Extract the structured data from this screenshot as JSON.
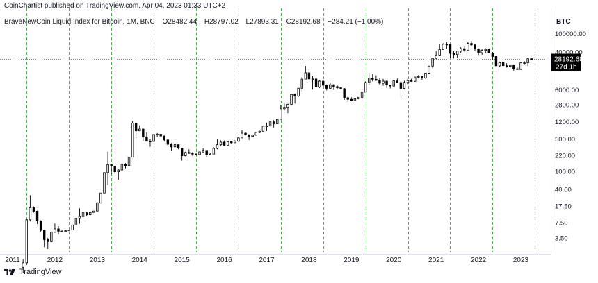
{
  "header": {
    "published_line": "CoinChartist published on TradingView.com, Apr 04, 2023 01:33 UTC+2",
    "symbol": "BraveNewCoin Liquid Index for Bitcoin, 1M, BNC",
    "open": "O28482.44",
    "high": "H28797.02",
    "low": "L27893.31",
    "close": "C28192.68",
    "change": "−284.21 (−1.00%)"
  },
  "footer": {
    "brand": "TradingView",
    "logo_icon": "tradingview-logo-icon"
  },
  "colors": {
    "up": "#ffffff",
    "down": "#000000",
    "wick": "#000000",
    "halving_lines": "#4caf50",
    "price_badge": "#000000"
  },
  "chart_data": {
    "type": "candlestick",
    "unit": "BTC",
    "scale": "log",
    "yticks": [
      "100000.00",
      "40000.00",
      "6000.00",
      "2800.00",
      "1200.00",
      "500.00",
      "220.00",
      "100.00",
      "40.00",
      "17.50",
      "7.50",
      "3.50"
    ],
    "xticks": [
      "2011",
      "2012",
      "2013",
      "2014",
      "2015",
      "2016",
      "2017",
      "2018",
      "2019",
      "2020",
      "2021",
      "2022",
      "2023"
    ],
    "ylim": [
      1.8,
      135000
    ],
    "last_price": "28192.68",
    "last_price_label": "27d 1h",
    "vertical_marker_dates": [
      "2011-05",
      "2012-05",
      "2013-05",
      "2014-05",
      "2015-05",
      "2016-05",
      "2017-05",
      "2018-05",
      "2019-05",
      "2020-05",
      "2021-05",
      "2022-05",
      "2023-05"
    ],
    "candles": [
      [
        "2011-04",
        0.8,
        1.2,
        0.6,
        1.0
      ],
      [
        "2011-05",
        1.0,
        9.0,
        0.9,
        8.7
      ],
      [
        "2011-06",
        8.7,
        30.0,
        8.0,
        16.0
      ],
      [
        "2011-07",
        16.0,
        17.0,
        12.5,
        13.4
      ],
      [
        "2011-08",
        13.4,
        13.8,
        7.0,
        8.2
      ],
      [
        "2011-09",
        8.2,
        8.5,
        4.8,
        5.1
      ],
      [
        "2011-10",
        5.1,
        5.2,
        2.2,
        3.2
      ],
      [
        "2011-11",
        3.2,
        3.5,
        2.0,
        2.9
      ],
      [
        "2011-12",
        2.9,
        4.5,
        2.8,
        4.7
      ],
      [
        "2012-01",
        4.7,
        7.2,
        4.5,
        5.5
      ],
      [
        "2012-02",
        5.5,
        6.3,
        4.2,
        4.9
      ],
      [
        "2012-03",
        4.9,
        5.3,
        4.7,
        4.9
      ],
      [
        "2012-04",
        4.9,
        5.2,
        4.8,
        5.0
      ],
      [
        "2012-05",
        5.0,
        5.2,
        4.9,
        5.2
      ],
      [
        "2012-06",
        5.2,
        6.7,
        5.2,
        6.7
      ],
      [
        "2012-07",
        6.7,
        9.5,
        6.5,
        9.3
      ],
      [
        "2012-08",
        9.3,
        15.4,
        7.1,
        10.2
      ],
      [
        "2012-09",
        10.2,
        12.8,
        10.0,
        12.4
      ],
      [
        "2012-10",
        12.4,
        12.9,
        10.5,
        11.2
      ],
      [
        "2012-11",
        11.2,
        12.5,
        10.3,
        12.6
      ],
      [
        "2012-12",
        12.6,
        13.7,
        12.5,
        13.5
      ],
      [
        "2013-01",
        13.5,
        21.0,
        13.2,
        20.4
      ],
      [
        "2013-02",
        20.4,
        33.0,
        19.8,
        33.4
      ],
      [
        "2013-03",
        33.4,
        94.0,
        33.0,
        93.0
      ],
      [
        "2013-04",
        93.0,
        266.0,
        50.0,
        139.0
      ],
      [
        "2013-05",
        139.0,
        140.0,
        85.0,
        129.0
      ],
      [
        "2013-06",
        129.0,
        130.0,
        88.0,
        97.0
      ],
      [
        "2013-07",
        97.0,
        110.0,
        65.0,
        106.0
      ],
      [
        "2013-08",
        106.0,
        140.0,
        100.0,
        141.0
      ],
      [
        "2013-09",
        141.0,
        150.0,
        115.0,
        132.0
      ],
      [
        "2013-10",
        132.0,
        215.0,
        105.0,
        203.0
      ],
      [
        "2013-11",
        203.0,
        1240.0,
        200.0,
        1120.0
      ],
      [
        "2013-12",
        1120.0,
        1150.0,
        520.0,
        757.0
      ],
      [
        "2014-01",
        757.0,
        1000.0,
        750.0,
        830.0
      ],
      [
        "2014-02",
        830.0,
        850.0,
        450.0,
        560.0
      ],
      [
        "2014-03",
        560.0,
        700.0,
        440.0,
        450.0
      ],
      [
        "2014-04",
        450.0,
        500.0,
        340.0,
        445.0
      ],
      [
        "2014-05",
        445.0,
        630.0,
        440.0,
        630.0
      ],
      [
        "2014-06",
        630.0,
        680.0,
        560.0,
        640.0
      ],
      [
        "2014-07",
        640.0,
        650.0,
        570.0,
        585.0
      ],
      [
        "2014-08",
        585.0,
        600.0,
        440.0,
        480.0
      ],
      [
        "2014-09",
        480.0,
        500.0,
        350.0,
        385.0
      ],
      [
        "2014-10",
        385.0,
        410.0,
        280.0,
        338.0
      ],
      [
        "2014-11",
        338.0,
        460.0,
        320.0,
        378.0
      ],
      [
        "2014-12",
        378.0,
        380.0,
        300.0,
        320.0
      ],
      [
        "2015-01",
        320.0,
        320.0,
        170.0,
        217.0
      ],
      [
        "2015-02",
        217.0,
        265.0,
        210.0,
        255.0
      ],
      [
        "2015-03",
        255.0,
        300.0,
        240.0,
        244.0
      ],
      [
        "2015-04",
        244.0,
        260.0,
        215.0,
        236.0
      ],
      [
        "2015-05",
        236.0,
        245.0,
        225.0,
        230.0
      ],
      [
        "2015-06",
        230.0,
        268.0,
        220.0,
        263.0
      ],
      [
        "2015-07",
        263.0,
        315.0,
        255.0,
        284.0
      ],
      [
        "2015-08",
        284.0,
        285.0,
        200.0,
        230.0
      ],
      [
        "2015-09",
        230.0,
        245.0,
        225.0,
        236.0
      ],
      [
        "2015-10",
        236.0,
        330.0,
        235.0,
        314.0
      ],
      [
        "2015-11",
        314.0,
        500.0,
        300.0,
        377.0
      ],
      [
        "2015-12",
        377.0,
        470.0,
        350.0,
        430.0
      ],
      [
        "2016-01",
        430.0,
        465.0,
        360.0,
        368.0
      ],
      [
        "2016-02",
        368.0,
        440.0,
        365.0,
        437.0
      ],
      [
        "2016-03",
        437.0,
        440.0,
        400.0,
        416.0
      ],
      [
        "2016-04",
        416.0,
        470.0,
        415.0,
        448.0
      ],
      [
        "2016-05",
        448.0,
        550.0,
        440.0,
        531.0
      ],
      [
        "2016-06",
        531.0,
        780.0,
        530.0,
        673.0
      ],
      [
        "2016-07",
        673.0,
        700.0,
        600.0,
        624.0
      ],
      [
        "2016-08",
        624.0,
        630.0,
        480.0,
        575.0
      ],
      [
        "2016-09",
        575.0,
        620.0,
        570.0,
        609.0
      ],
      [
        "2016-10",
        609.0,
        720.0,
        605.0,
        700.0
      ],
      [
        "2016-11",
        700.0,
        760.0,
        680.0,
        742.0
      ],
      [
        "2016-12",
        742.0,
        980.0,
        740.0,
        960.0
      ],
      [
        "2017-01",
        960.0,
        1150.0,
        750.0,
        970.0
      ],
      [
        "2017-02",
        970.0,
        1200.0,
        920.0,
        1190.0
      ],
      [
        "2017-03",
        1190.0,
        1300.0,
        900.0,
        1080.0
      ],
      [
        "2017-04",
        1080.0,
        1380.0,
        1060.0,
        1350.0
      ],
      [
        "2017-05",
        1350.0,
        2780.0,
        1340.0,
        2300.0
      ],
      [
        "2017-06",
        2300.0,
        3000.0,
        2100.0,
        2480.0
      ],
      [
        "2017-07",
        2480.0,
        2950.0,
        1850.0,
        2870.0
      ],
      [
        "2017-08",
        2870.0,
        4780.0,
        2700.0,
        4700.0
      ],
      [
        "2017-09",
        4700.0,
        4950.0,
        2980.0,
        4340.0
      ],
      [
        "2017-10",
        4340.0,
        6480.0,
        4200.0,
        6450.0
      ],
      [
        "2017-11",
        6450.0,
        11400.0,
        5500.0,
        10200.0
      ],
      [
        "2017-12",
        10200.0,
        19800.0,
        10500.0,
        14000.0
      ],
      [
        "2018-01",
        14000.0,
        17200.0,
        9300.0,
        10300.0
      ],
      [
        "2018-02",
        10300.0,
        11800.0,
        6000.0,
        10300.0
      ],
      [
        "2018-03",
        10300.0,
        11700.0,
        6500.0,
        6900.0
      ],
      [
        "2018-04",
        6900.0,
        9800.0,
        6500.0,
        9200.0
      ],
      [
        "2018-05",
        9200.0,
        9990.0,
        7100.0,
        7500.0
      ],
      [
        "2018-06",
        7500.0,
        7800.0,
        5780.0,
        6400.0
      ],
      [
        "2018-07",
        6400.0,
        8500.0,
        6100.0,
        7700.0
      ],
      [
        "2018-08",
        7700.0,
        7800.0,
        5880.0,
        7000.0
      ],
      [
        "2018-09",
        7000.0,
        7400.0,
        6100.0,
        6600.0
      ],
      [
        "2018-10",
        6600.0,
        6800.0,
        6200.0,
        6300.0
      ],
      [
        "2018-11",
        6300.0,
        6500.0,
        3600.0,
        4000.0
      ],
      [
        "2018-12",
        4000.0,
        4200.0,
        3200.0,
        3700.0
      ],
      [
        "2019-01",
        3700.0,
        4100.0,
        3350.0,
        3450.0
      ],
      [
        "2019-02",
        3450.0,
        4200.0,
        3400.0,
        3800.0
      ],
      [
        "2019-03",
        3800.0,
        4100.0,
        3750.0,
        4100.0
      ],
      [
        "2019-04",
        4100.0,
        5600.0,
        4050.0,
        5300.0
      ],
      [
        "2019-05",
        5300.0,
        9100.0,
        5300.0,
        8600.0
      ],
      [
        "2019-06",
        8600.0,
        13800.0,
        7500.0,
        10800.0
      ],
      [
        "2019-07",
        10800.0,
        13200.0,
        9100.0,
        10100.0
      ],
      [
        "2019-08",
        10100.0,
        12300.0,
        9400.0,
        9600.0
      ],
      [
        "2019-09",
        9600.0,
        10900.0,
        7700.0,
        8300.0
      ],
      [
        "2019-10",
        8300.0,
        10300.0,
        7300.0,
        9200.0
      ],
      [
        "2019-11",
        9200.0,
        9500.0,
        6600.0,
        7600.0
      ],
      [
        "2019-12",
        7600.0,
        7700.0,
        6400.0,
        7200.0
      ],
      [
        "2020-01",
        7200.0,
        9600.0,
        6900.0,
        9350.0
      ],
      [
        "2020-02",
        9350.0,
        10500.0,
        8400.0,
        8600.0
      ],
      [
        "2020-03",
        8600.0,
        9200.0,
        4000.0,
        6400.0
      ],
      [
        "2020-04",
        6400.0,
        9400.0,
        6200.0,
        8650.0
      ],
      [
        "2020-05",
        8650.0,
        10000.0,
        8100.0,
        9450.0
      ],
      [
        "2020-06",
        9450.0,
        10400.0,
        8900.0,
        9150.0
      ],
      [
        "2020-07",
        9150.0,
        11400.0,
        8900.0,
        11350.0
      ],
      [
        "2020-08",
        11350.0,
        12500.0,
        10900.0,
        11650.0
      ],
      [
        "2020-09",
        11650.0,
        12100.0,
        9900.0,
        10800.0
      ],
      [
        "2020-10",
        10800.0,
        14000.0,
        10400.0,
        13800.0
      ],
      [
        "2020-11",
        13800.0,
        19800.0,
        13200.0,
        19700.0
      ],
      [
        "2020-12",
        19700.0,
        29300.0,
        17600.0,
        29000.0
      ],
      [
        "2021-01",
        29000.0,
        41900.0,
        28100.0,
        33100.0
      ],
      [
        "2021-02",
        33100.0,
        58300.0,
        32300.0,
        45200.0
      ],
      [
        "2021-03",
        45200.0,
        61800.0,
        45000.0,
        58800.0
      ],
      [
        "2021-04",
        58800.0,
        64800.0,
        47000.0,
        57700.0
      ],
      [
        "2021-05",
        57700.0,
        59500.0,
        30000.0,
        37300.0
      ],
      [
        "2021-06",
        37300.0,
        41300.0,
        28800.0,
        35000.0
      ],
      [
        "2021-07",
        35000.0,
        42200.0,
        29300.0,
        41500.0
      ],
      [
        "2021-08",
        41500.0,
        50500.0,
        37300.0,
        47100.0
      ],
      [
        "2021-09",
        47100.0,
        52900.0,
        39600.0,
        43800.0
      ],
      [
        "2021-10",
        43800.0,
        67000.0,
        43300.0,
        61300.0
      ],
      [
        "2021-11",
        61300.0,
        69000.0,
        53500.0,
        57000.0
      ],
      [
        "2021-12",
        57000.0,
        59000.0,
        42000.0,
        46300.0
      ],
      [
        "2022-01",
        46300.0,
        47900.0,
        33000.0,
        38500.0
      ],
      [
        "2022-02",
        38500.0,
        45800.0,
        34400.0,
        43200.0
      ],
      [
        "2022-03",
        43200.0,
        48100.0,
        37300.0,
        45500.0
      ],
      [
        "2022-04",
        45500.0,
        47400.0,
        37700.0,
        37700.0
      ],
      [
        "2022-05",
        37700.0,
        39800.0,
        26700.0,
        31800.0
      ],
      [
        "2022-06",
        31800.0,
        31900.0,
        17600.0,
        19900.0
      ],
      [
        "2022-07",
        19900.0,
        24600.0,
        18800.0,
        23300.0
      ],
      [
        "2022-08",
        23300.0,
        25200.0,
        19600.0,
        20050.0
      ],
      [
        "2022-09",
        20050.0,
        22700.0,
        18200.0,
        19400.0
      ],
      [
        "2022-10",
        19400.0,
        21000.0,
        18200.0,
        20500.0
      ],
      [
        "2022-11",
        20500.0,
        21400.0,
        15500.0,
        17150.0
      ],
      [
        "2022-12",
        17150.0,
        18400.0,
        16300.0,
        16550.0
      ],
      [
        "2023-01",
        16550.0,
        23900.0,
        16500.0,
        23100.0
      ],
      [
        "2023-02",
        23100.0,
        25200.0,
        21400.0,
        23150.0
      ],
      [
        "2023-03",
        23150.0,
        29200.0,
        19600.0,
        28480.0
      ],
      [
        "2023-04",
        28482.44,
        28797.02,
        27893.31,
        28192.68
      ]
    ]
  }
}
